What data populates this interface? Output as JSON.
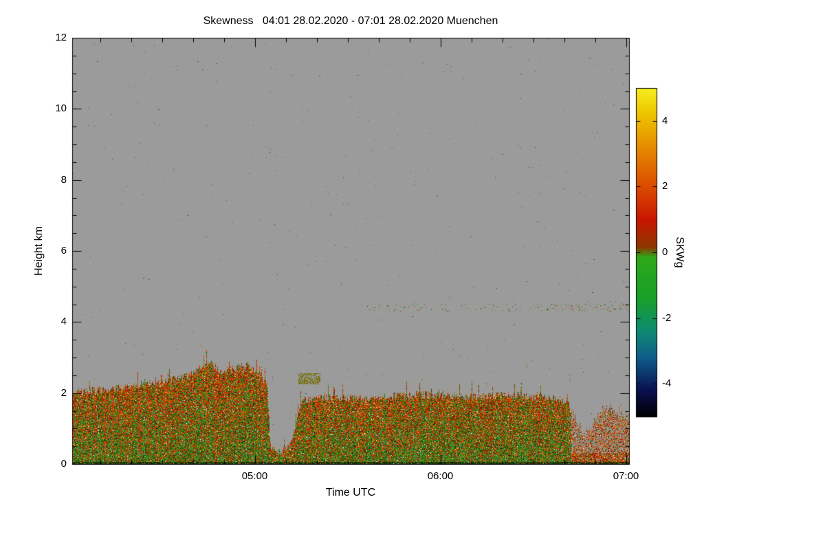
{
  "chart_data": {
    "type": "heatmap",
    "title": "Skewness   04:01 28.02.2020 - 07:01 28.02.2020 Muenchen",
    "xlabel": "Time UTC",
    "ylabel": "Height km",
    "colorbar_label": "SKWg",
    "site": "Muenchen",
    "time_start_utc": "04:01 28.02.2020",
    "time_end_utc": "07:01 28.02.2020",
    "x_start_minutes": 0,
    "x_end_minutes": 180,
    "x_ticks": [
      {
        "label": "05:00",
        "minute": 59
      },
      {
        "label": "06:00",
        "minute": 119
      },
      {
        "label": "07:00",
        "minute": 179
      }
    ],
    "x_minor_ticks_every_min": 10,
    "ylim": [
      0,
      12
    ],
    "y_ticks": [
      {
        "label": "0",
        "km": 0
      },
      {
        "label": "2",
        "km": 2
      },
      {
        "label": "4",
        "km": 4
      },
      {
        "label": "6",
        "km": 6
      },
      {
        "label": "8",
        "km": 8
      },
      {
        "label": "10",
        "km": 10
      },
      {
        "label": "12",
        "km": 12
      }
    ],
    "y_minor_ticks_every_km": 0.5,
    "background_color": "#9b9b9b",
    "colorbar": {
      "range": [
        -5,
        5
      ],
      "ticks": [
        {
          "label": "4",
          "value": 4
        },
        {
          "label": "2",
          "value": 2
        },
        {
          "label": "0",
          "value": 0
        },
        {
          "label": "-2",
          "value": -2
        },
        {
          "label": "-4",
          "value": -4
        }
      ],
      "stops": [
        {
          "value": 5,
          "color": "#f6ee20"
        },
        {
          "value": 4.2,
          "color": "#eec400"
        },
        {
          "value": 3.2,
          "color": "#e68c00"
        },
        {
          "value": 2,
          "color": "#dc4c00"
        },
        {
          "value": 1,
          "color": "#c81600"
        },
        {
          "value": 0.15,
          "color": "#8c3800"
        },
        {
          "value": -0.15,
          "color": "#2fa818"
        },
        {
          "value": -1.4,
          "color": "#17a02a"
        },
        {
          "value": -2.4,
          "color": "#0e8a72"
        },
        {
          "value": -3.2,
          "color": "#0e5e8a"
        },
        {
          "value": -4.2,
          "color": "#0a1050"
        },
        {
          "value": -5,
          "color": "#000000"
        }
      ]
    },
    "layer_top_km": [
      [
        0,
        2.0
      ],
      [
        10,
        2.1
      ],
      [
        20,
        2.2
      ],
      [
        30,
        2.32
      ],
      [
        38,
        2.5
      ],
      [
        44,
        2.85
      ],
      [
        48,
        2.6
      ],
      [
        53,
        2.7
      ],
      [
        57,
        2.78
      ],
      [
        61,
        2.45
      ],
      [
        63,
        2.2
      ],
      [
        64,
        0.5
      ],
      [
        67,
        0.35
      ],
      [
        70,
        0.45
      ],
      [
        72,
        1.1
      ],
      [
        74,
        1.8
      ],
      [
        80,
        1.85
      ],
      [
        90,
        1.85
      ],
      [
        100,
        1.9
      ],
      [
        115,
        1.95
      ],
      [
        130,
        1.9
      ],
      [
        140,
        1.95
      ],
      [
        150,
        1.9
      ],
      [
        156,
        1.85
      ],
      [
        160,
        1.75
      ],
      [
        163,
        1.2
      ],
      [
        165,
        0.85
      ],
      [
        168,
        1.05
      ],
      [
        171,
        1.55
      ],
      [
        174,
        1.6
      ],
      [
        176,
        1.35
      ],
      [
        180,
        1.35
      ]
    ],
    "detached_blob": {
      "t_start": 73,
      "t_end": 80,
      "km_bottom": 2.25,
      "km_top": 2.55
    },
    "elevated_band": {
      "t_start": 95,
      "t_end": 180,
      "km_bottom": 4.3,
      "km_top": 4.5
    },
    "noise_seed": 1337,
    "speckle_count": 420,
    "speckle_colors": [
      "#7a6a00",
      "#9a2800",
      "#2d7a10",
      "#0c6a5e",
      "#8a8a20",
      "#a05000"
    ],
    "palette": {
      "greens": [
        "#1f7a10",
        "#2f8f1a",
        "#17691c",
        "#3f9c1e",
        "#0f5c12",
        "#4aa524"
      ],
      "reds": [
        "#c21800",
        "#d32f00",
        "#b21200",
        "#e03c00",
        "#9c1e00",
        "#d65200"
      ],
      "oranges": [
        "#e07000",
        "#cc5a00",
        "#e8890a"
      ],
      "olives": [
        "#6e7000",
        "#7e6a00",
        "#565e00",
        "#8a7a10"
      ],
      "darks": [
        "#142c08",
        "#1d3a0a",
        "#0c1c04",
        "#233f0e"
      ],
      "rare": [
        "#0c0c0c",
        "#f4f4e4",
        "#e8d200",
        "#0a7a6a",
        "#ffffff"
      ]
    }
  }
}
